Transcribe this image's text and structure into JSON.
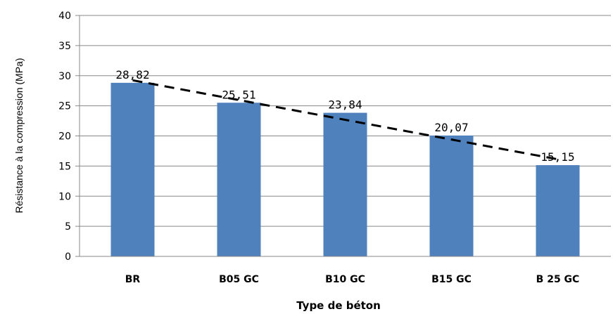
{
  "chart_data": {
    "type": "bar",
    "title": "",
    "xlabel": "Type de béton",
    "ylabel": "Résistance à la compression (MPa)",
    "ylim": [
      0,
      40
    ],
    "ytick_step": 5,
    "grid": true,
    "categories": [
      "BR",
      "B05 GC",
      "B10 GC",
      "B15 GC",
      "B 25 GC"
    ],
    "values": [
      28.82,
      25.51,
      23.84,
      20.07,
      15.15
    ],
    "data_labels": [
      "28,82",
      "25,51",
      "23,84",
      "20,07",
      "15,15"
    ],
    "trendline": {
      "type": "linear",
      "style": "dashed",
      "color": "#000000"
    },
    "colors": {
      "bar": "#4F81BD",
      "grid": "#888888",
      "axis": "#888888"
    }
  }
}
